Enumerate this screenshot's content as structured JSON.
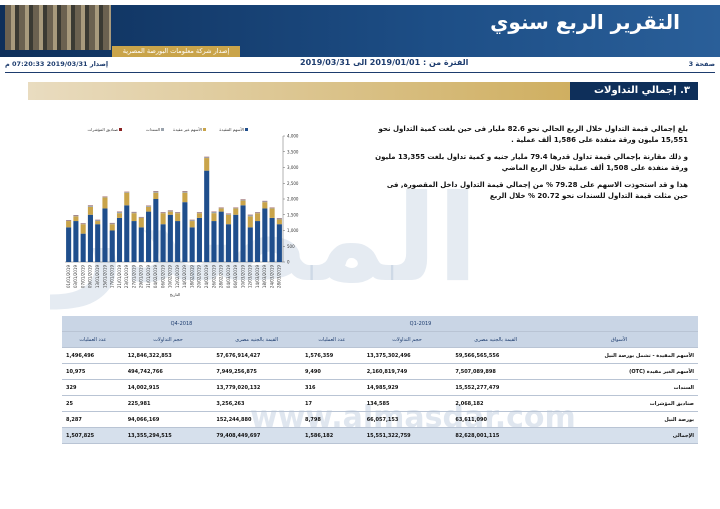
{
  "header": {
    "title": "التقرير الربع سنوي",
    "subtitle": "إصدار شركة معلومات البورصة المصرية",
    "page": "صفحة 3",
    "period": "الفترة من : 2019/01/01 الى 2019/03/31",
    "issued": "إصدار 2019/03/31 07:20:33 م"
  },
  "section": {
    "number": "٣.",
    "title": "إجمالي التداولات"
  },
  "paragraphs": [
    "بلغ إجمالي قيمة التداول خلال الربع الحالي نحو 82.6 مليار فى حين بلغت كمية التداول نحو 15,551 مليون ورقة منفذة على 1,586 ألف عملية .",
    "و ذلك مقارنة بإجمالي قيمة تداول قدرها 79.4 مليار جنيه و كمية تداول بلغت 13,355 مليون ورقة منفذة على 1,508 ألف عملية خلال الربع الماضي",
    "هذا و قد استحوذت الاسهم على 79.28 % من إجمالي قيمة التداول داخل المقصورة, فى حين مثلت قيمة التداول للسندات نحو 20.72 % خلال الربع"
  ],
  "watermark": {
    "logo": "المصدر",
    "url": "www.almasdar.com"
  },
  "chart_data": {
    "type": "bar",
    "x_label": "التاريخ",
    "categories": [
      "01/01/2019",
      "03/01/2019",
      "07/01/2019",
      "09/01/2019",
      "13/01/2019",
      "15/01/2019",
      "17/01/2019",
      "21/01/2019",
      "23/01/2019",
      "27/01/2019",
      "29/01/2019",
      "31/01/2019",
      "04/02/2019",
      "06/02/2019",
      "10/02/2019",
      "12/02/2019",
      "14/02/2019",
      "18/02/2019",
      "20/02/2019",
      "24/02/2019",
      "26/02/2019",
      "28/02/2019",
      "04/03/2019",
      "06/03/2019",
      "10/03/2019",
      "12/03/2019",
      "14/03/2019",
      "18/03/2019",
      "24/03/2019",
      "28/03/2019"
    ],
    "series": [
      {
        "name": "الأسهم المقيدة",
        "color": "#1f4e8c",
        "values": [
          1100,
          1300,
          900,
          1500,
          1200,
          1700,
          1000,
          1400,
          1800,
          1300,
          1100,
          1600,
          2000,
          1200,
          1500,
          1300,
          1900,
          1100,
          1400,
          2900,
          1300,
          1600,
          1200,
          1500,
          1800,
          1100,
          1300,
          1700,
          1400,
          1200
        ]
      },
      {
        "name": "الأسهم غير مقيدة",
        "color": "#c9a44a",
        "values": [
          200,
          150,
          300,
          250,
          100,
          350,
          200,
          150,
          400,
          250,
          300,
          150,
          200,
          350,
          100,
          250,
          300,
          200,
          150,
          400,
          250,
          100,
          300,
          200,
          150,
          350,
          250,
          200,
          300,
          150
        ]
      },
      {
        "name": "السندات",
        "color": "#9aa3ad",
        "values": [
          20,
          30,
          20,
          40,
          30,
          20,
          30,
          40,
          20,
          30,
          20,
          30,
          40,
          20,
          30,
          20,
          40,
          30,
          20,
          30,
          40,
          20,
          30,
          20,
          30,
          40,
          20,
          30,
          20,
          30
        ]
      },
      {
        "name": "صناديق المؤشرات",
        "color": "#8b2323",
        "values": [
          10,
          10,
          10,
          10,
          10,
          10,
          10,
          10,
          10,
          10,
          10,
          10,
          10,
          10,
          10,
          10,
          10,
          10,
          10,
          10,
          10,
          10,
          10,
          10,
          10,
          10,
          10,
          10,
          10,
          10
        ]
      }
    ],
    "ylim": [
      0,
      4000
    ],
    "yticks": [
      0,
      {
        "value": 500,
        "label": "500"
      },
      {
        "value": 1000,
        "label": "1,000"
      },
      {
        "value": 1500,
        "label": "1,500"
      },
      {
        "value": 2000,
        "label": "2,000"
      },
      {
        "value": 2500,
        "label": "2,500"
      },
      {
        "value": 3000,
        "label": "3,000"
      },
      {
        "value": 3500,
        "label": "3,500"
      },
      {
        "value": 4000,
        "label": "4,000"
      }
    ],
    "grid": false
  },
  "table": {
    "groups": [
      "2019-Q1",
      "2018-Q4"
    ],
    "columns": [
      "الأسواق",
      "القيمة بالجنيه مصرى",
      "حجم التداولات",
      "عدد العمليات",
      "القيمة بالجنيه مصرى",
      "حجم التداولات",
      "عدد العمليات"
    ],
    "rows": [
      [
        "الأسهم المقيدة - تشمل بورصة النيل",
        "59,566,565,556",
        "13,375,302,496",
        "1,576,359",
        "57,676,914,427",
        "12,846,322,853",
        "1,496,496"
      ],
      [
        "الأسهم الغير مقيدة (OTC)",
        "7,507,089,898",
        "2,160,819,749",
        "9,490",
        "7,949,256,875",
        "494,742,766",
        "10,975"
      ],
      [
        "السندات",
        "15,552,277,479",
        "14,985,929",
        "316",
        "13,779,020,132",
        "14,002,915",
        "329"
      ],
      [
        "صناديق المؤشرات",
        "2,068,182",
        "134,585",
        "17",
        "3,256,263",
        "225,981",
        "25"
      ],
      [
        "بورصة النيل",
        "63,611,090",
        "66,057,153",
        "8,798",
        "152,244,880",
        "94,066,169",
        "8,287"
      ],
      [
        "الإجمالى",
        "82,628,001,115",
        "15,551,322,759",
        "1,586,182",
        "79,408,449,697",
        "13,355,294,515",
        "1,507,825"
      ]
    ]
  }
}
